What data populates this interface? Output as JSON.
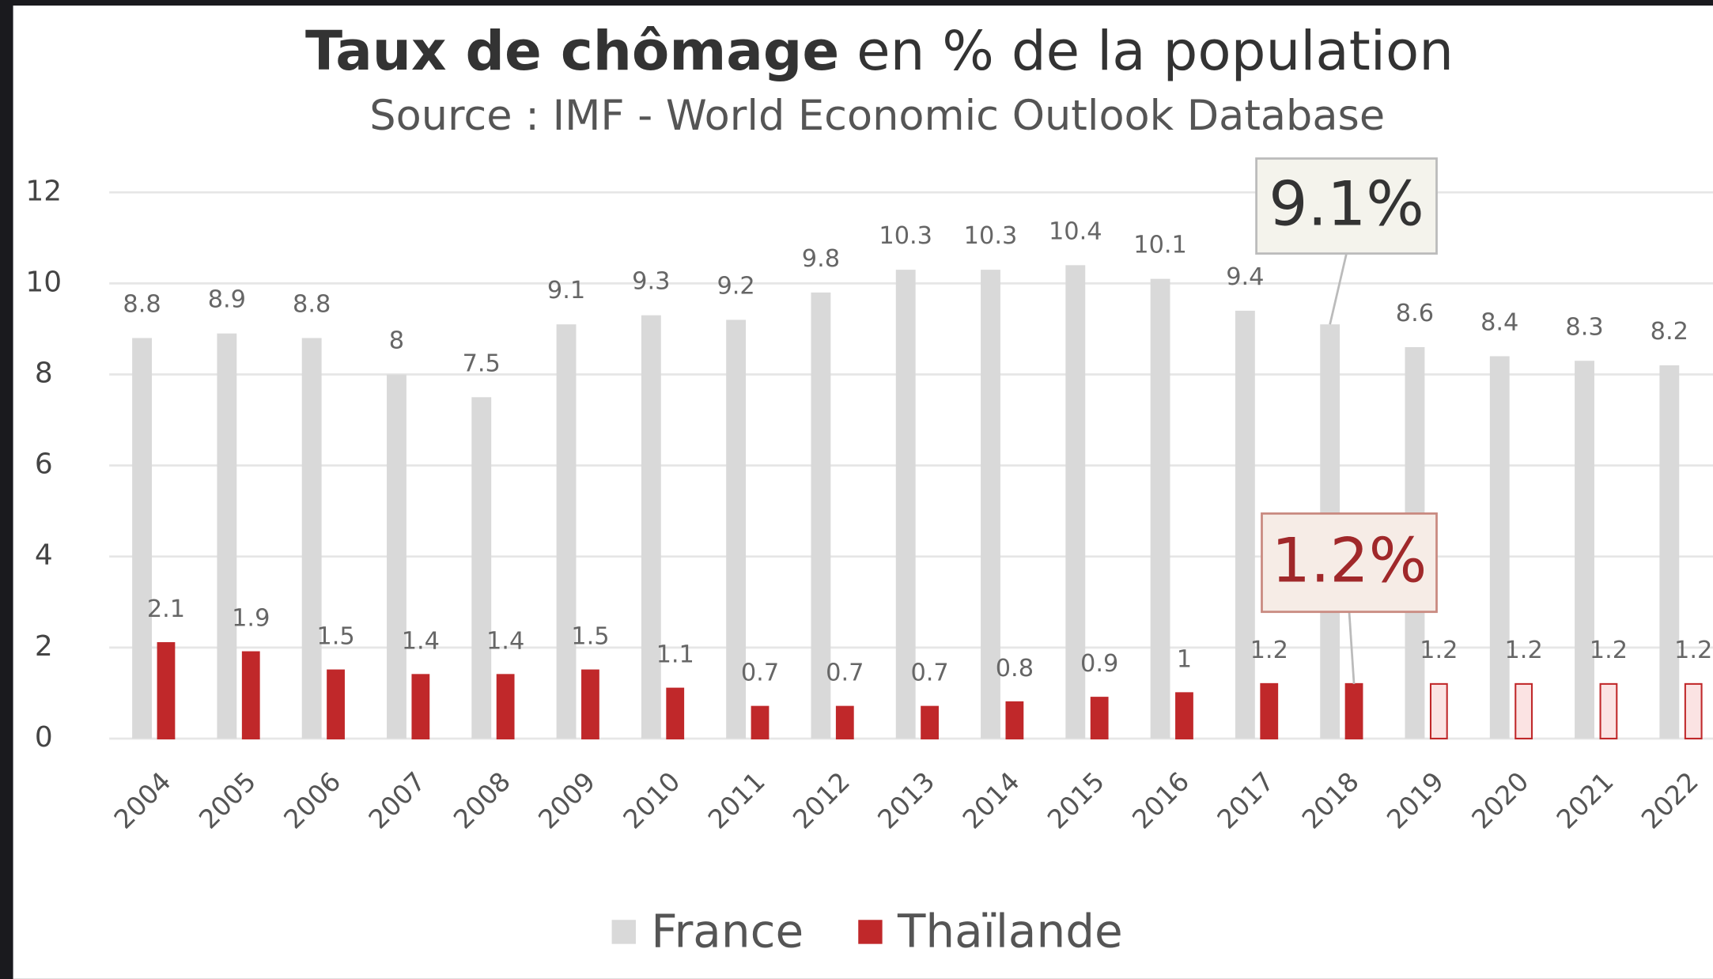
{
  "chart_data": {
    "type": "bar",
    "title": [
      "Taux de chômage",
      "en % de la population"
    ],
    "subtitle": "Source : IMF - World Economic Outlook Database",
    "categories": [
      "2004",
      "2005",
      "2006",
      "2007",
      "2008",
      "2009",
      "2010",
      "2011",
      "2012",
      "2013",
      "2014",
      "2015",
      "2016",
      "2017",
      "2018",
      "2019",
      "2020",
      "2021",
      "2022"
    ],
    "series": [
      {
        "name": "France",
        "color": "#d9d9d9",
        "values": [
          8.8,
          8.9,
          8.8,
          8,
          7.5,
          9.1,
          9.3,
          9.2,
          9.8,
          10.3,
          10.3,
          10.4,
          10.1,
          9.4,
          9.1,
          8.6,
          8.4,
          8.3,
          8.2
        ],
        "value_labels": [
          "8.8",
          "8.9",
          "8.8",
          "8",
          "7.5",
          "9.1",
          "9.3",
          "9.2",
          "9.8",
          "10.3",
          "10.3",
          "10.4",
          "10.1",
          "9.4",
          null,
          "8.6",
          "8.4",
          "8.3",
          "8.2"
        ]
      },
      {
        "name": "Thaïlande",
        "color": "#c0282a",
        "colors": [
          "#c0282a",
          "#c0282a",
          "#c0282a",
          "#c0282a",
          "#c0282a",
          "#c0282a",
          "#c0282a",
          "#c0282a",
          "#c0282a",
          "#c0282a",
          "#c0282a",
          "#c0282a",
          "#c0282a",
          "#c0282a",
          "#c0282a",
          "#fbe3e3",
          "#fbe3e3",
          "#fbe3e3",
          "#fbe3e3"
        ],
        "values": [
          2.1,
          1.9,
          1.5,
          1.4,
          1.4,
          1.5,
          1.1,
          0.7,
          0.7,
          0.7,
          0.8,
          0.9,
          1,
          1.2,
          1.2,
          1.2,
          1.2,
          1.2,
          1.2
        ],
        "value_labels": [
          "2.1",
          "1.9",
          "1.5",
          "1.4",
          "1.4",
          "1.5",
          "1.1",
          "0.7",
          "0.7",
          "0.7",
          "0.8",
          "0.9",
          "1",
          "1.2",
          null,
          "1.2",
          "1.2",
          "1.2",
          "1.2"
        ]
      }
    ],
    "annotations": [
      {
        "text": "9.1%",
        "series": 0,
        "index": 14
      },
      {
        "text": "1.2%",
        "series": 1,
        "index": 14
      }
    ],
    "ylim": [
      0,
      12
    ],
    "yticks": [
      0,
      2,
      4,
      6,
      8,
      10,
      12
    ],
    "grid": true,
    "legend": "bottom"
  }
}
